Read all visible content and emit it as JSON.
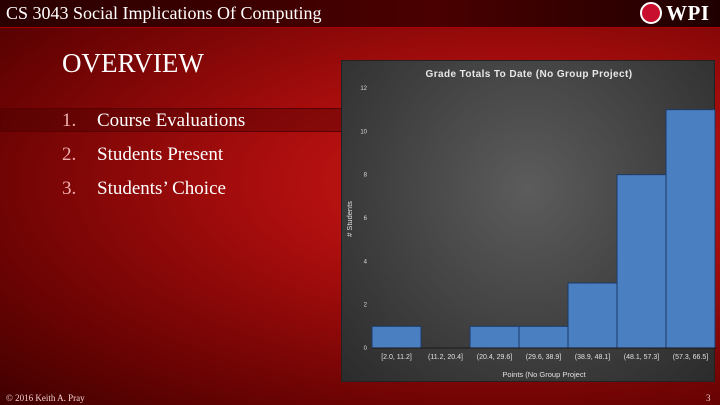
{
  "header": {
    "course_title": "CS 3043 Social Implications Of Computing",
    "logo_text": "WPI"
  },
  "slide": {
    "title": "OVERVIEW",
    "items": [
      {
        "number": "1.",
        "label": "Course Evaluations"
      },
      {
        "number": "2.",
        "label": "Students Present"
      },
      {
        "number": "3.",
        "label": "Students’ Choice"
      }
    ]
  },
  "chart_data": {
    "type": "bar",
    "title": "Grade Totals To Date (No Group Project)",
    "xlabel": "Points (No Group Project",
    "ylabel": "# Students",
    "categories": [
      "[2.0, 11.2]",
      "(11.2, 20.4]",
      "(20.4, 29.6]",
      "(29.6, 38.9]",
      "(38.9, 48.1]",
      "(48.1, 57.3]",
      "(57.3, 66.5]"
    ],
    "values": [
      1,
      0,
      1,
      1,
      3,
      8,
      11
    ],
    "ylim": [
      0,
      12
    ],
    "yticks": [
      "0",
      "2",
      "4",
      "6",
      "8",
      "10",
      "12"
    ],
    "grid": false,
    "colors": {
      "bar": "#4a7fc1",
      "bar_border": "#1e3a66"
    }
  },
  "footer": {
    "copyright": "© 2016 Keith A. Pray",
    "page_number": "3"
  }
}
